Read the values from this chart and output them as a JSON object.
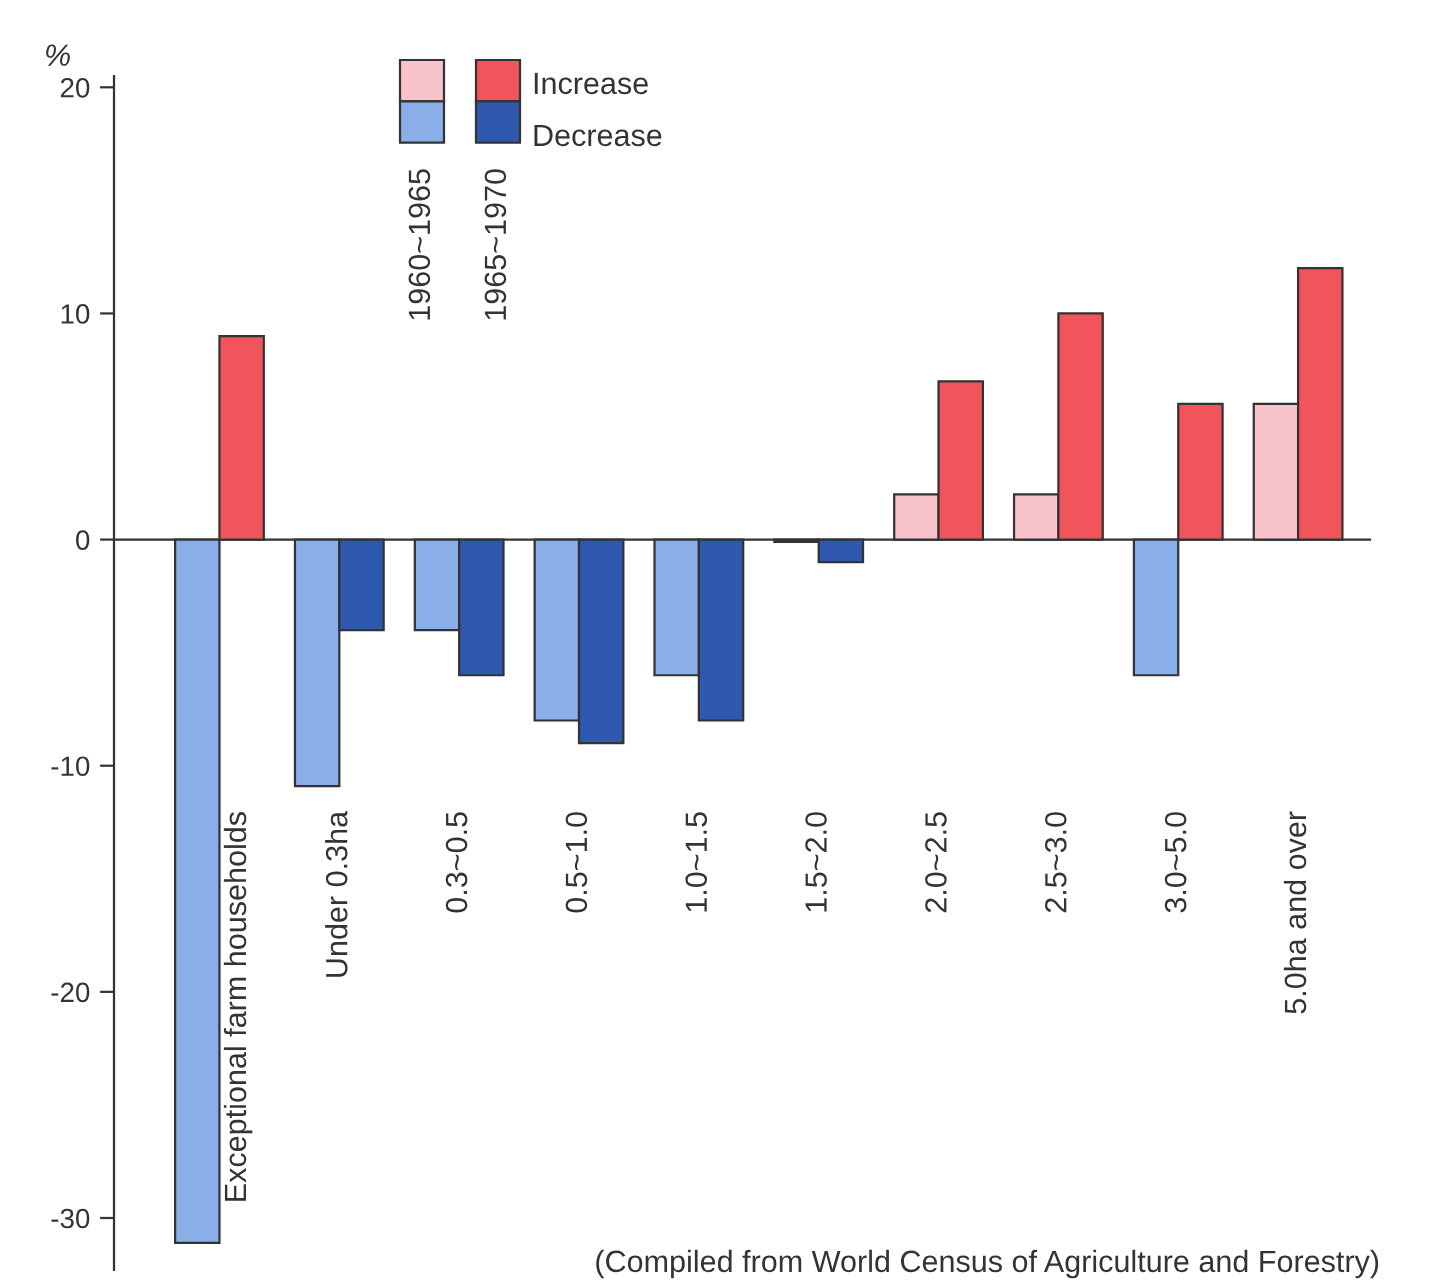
{
  "chart_data": {
    "type": "bar",
    "ylabel": "%",
    "categories": [
      "Exceptional farm households",
      "Under 0.3ha",
      "0.3~0.5",
      "0.5~1.0",
      "1.0~1.5",
      "1.5~2.0",
      "2.0~2.5",
      "2.5~3.0",
      "3.0~5.0",
      "5.0ha and over"
    ],
    "series": [
      {
        "name": "1960~1965",
        "values": [
          -31.1,
          -10.9,
          -4,
          -8,
          -6,
          -0.1,
          2,
          2,
          -6,
          6
        ],
        "colors": [
          "#8aaee8",
          "#8aaee8",
          "#8aaee8",
          "#8aaee8",
          "#8aaee8",
          "#8aaee8",
          "#f9c3cb",
          "#f9c3cb",
          "#8aaee8",
          "#f9c3cb"
        ]
      },
      {
        "name": "1965~1970",
        "values": [
          9,
          -4,
          -6,
          -9,
          -8,
          -1,
          7,
          10,
          6,
          12
        ],
        "colors": [
          "#f2545b",
          "#2f58b0",
          "#2f58b0",
          "#2f58b0",
          "#2f58b0",
          "#2f58b0",
          "#f2545b",
          "#f2545b",
          "#f2545b",
          "#f2545b"
        ]
      }
    ],
    "ylim": [
      -32.3,
      20.5
    ],
    "yticks": [
      {
        "value": -30,
        "label": "-30"
      },
      {
        "value": -20,
        "label": "-20"
      },
      {
        "value": -10,
        "label": "-10"
      },
      0,
      10,
      20
    ],
    "legend": "top",
    "annotations": [
      "Increase",
      "Decrease",
      "(Compiled from World Census of Agriculture and Forestry)"
    ]
  }
}
